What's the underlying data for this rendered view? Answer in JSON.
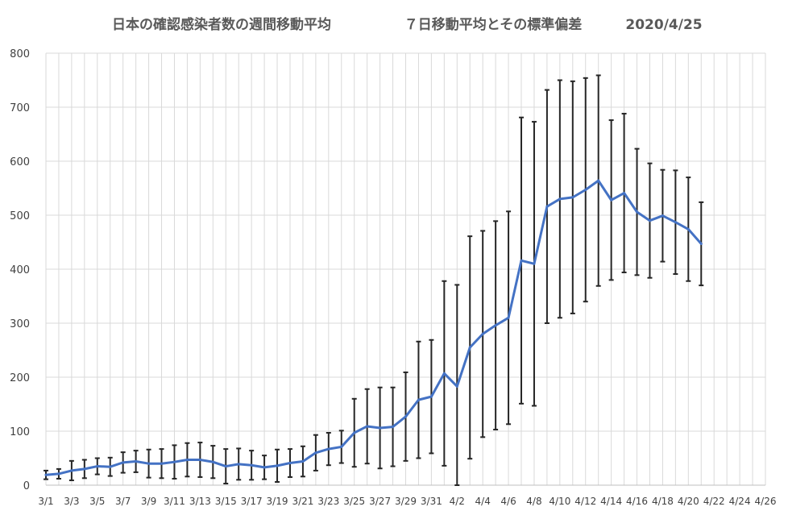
{
  "title": {
    "main": "日本の確認感染者数の週間移動平均",
    "sub": "７日移動平均とその標準偏差",
    "date": "2020/4/25"
  },
  "colors": {
    "line": "#4472c4",
    "errorbar": "#262626",
    "grid": "#d9d9d9",
    "axis": "#bfbfbf"
  },
  "chart_data": {
    "type": "line",
    "title": "日本の確認感染者数の週間移動平均　７日移動平均とその標準偏差　2020/4/25",
    "xlabel": "",
    "ylabel": "",
    "ylim": [
      0,
      800
    ],
    "yticks": [
      0,
      100,
      200,
      300,
      400,
      500,
      600,
      700,
      800
    ],
    "xticks": [
      "3/1",
      "3/3",
      "3/5",
      "3/7",
      "3/9",
      "3/11",
      "3/13",
      "3/15",
      "3/17",
      "3/19",
      "3/21",
      "3/23",
      "3/25",
      "3/27",
      "3/29",
      "3/31",
      "4/2",
      "4/4",
      "4/6",
      "4/8",
      "4/10",
      "4/12",
      "4/14",
      "4/16",
      "4/18",
      "4/20",
      "4/22",
      "4/24",
      "4/26"
    ],
    "grid": true,
    "legend": "none",
    "series": [
      {
        "x": [
          "3/1",
          "3/2",
          "3/3",
          "3/4",
          "3/5",
          "3/6",
          "3/7",
          "3/8",
          "3/9",
          "3/10",
          "3/11",
          "3/12",
          "3/13",
          "3/14",
          "3/15",
          "3/16",
          "3/17",
          "3/18",
          "3/19",
          "3/20",
          "3/21",
          "3/22",
          "3/23",
          "3/24",
          "3/25",
          "3/26",
          "3/27",
          "3/28",
          "3/29",
          "3/30",
          "3/31",
          "4/1",
          "4/2",
          "4/3",
          "4/4",
          "4/5",
          "4/6",
          "4/7",
          "4/8",
          "4/9",
          "4/10",
          "4/11",
          "4/12",
          "4/13",
          "4/14",
          "4/15",
          "4/16",
          "4/17",
          "4/18",
          "4/19",
          "4/20",
          "4/21"
        ],
        "values": [
          19,
          21,
          27,
          30,
          35,
          34,
          42,
          44,
          40,
          40,
          43,
          47,
          47,
          43,
          35,
          39,
          37,
          33,
          36,
          41,
          44,
          60,
          67,
          71,
          97,
          109,
          106,
          108,
          127,
          158,
          164,
          207,
          183,
          255,
          280,
          296,
          310,
          416,
          410,
          516,
          530,
          533,
          547,
          564,
          528,
          541,
          506,
          490,
          499,
          487,
          474,
          447
        ],
        "error": [
          8,
          9,
          18,
          17,
          15,
          17,
          19,
          20,
          26,
          27,
          31,
          31,
          32,
          30,
          32,
          29,
          27,
          22,
          30,
          26,
          28,
          33,
          30,
          30,
          63,
          69,
          75,
          73,
          82,
          108,
          105,
          171,
          188,
          206,
          191,
          193,
          197,
          265,
          263,
          216,
          220,
          215,
          207,
          195,
          148,
          147,
          117,
          106,
          85,
          96,
          96,
          77
        ]
      }
    ]
  }
}
